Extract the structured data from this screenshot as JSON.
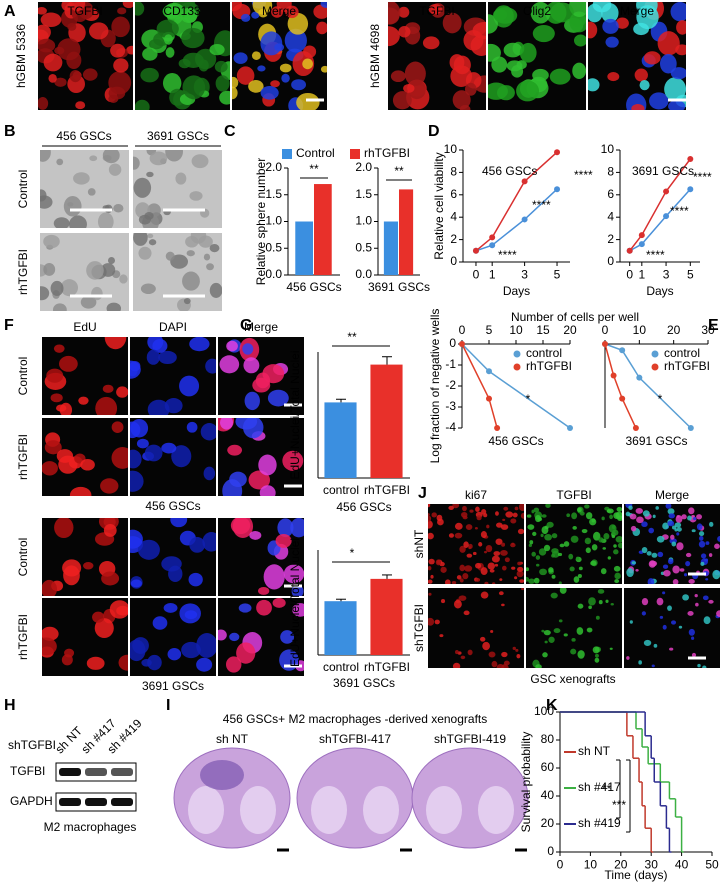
{
  "panel_labels": [
    "A",
    "B",
    "C",
    "D",
    "E",
    "F",
    "G",
    "H",
    "I",
    "J",
    "K"
  ],
  "a": {
    "left_sample": "hGBM 5336",
    "left_headers": [
      "TGFBI",
      "CD133",
      "Merge"
    ],
    "right_sample": "hGBM 4698",
    "right_headers": [
      "TGFBI",
      "Olig2",
      "Merge"
    ]
  },
  "b": {
    "columns": [
      "456 GSCs",
      "3691 GSCs"
    ],
    "rows": [
      "Control",
      "rhTGFBI"
    ]
  },
  "e_header": "Number of cells per well",
  "f": {
    "headers": [
      "EdU",
      "DAPI",
      "Merge"
    ],
    "rows": [
      "Control",
      "rhTGFBI"
    ],
    "groups": [
      "456 GSCs",
      "3691 GSCs"
    ]
  },
  "j": {
    "headers": [
      "ki67",
      "TGFBI",
      "Merge"
    ],
    "rows": [
      "shNT",
      "shTGFBI"
    ],
    "caption": "GSC xenografts"
  },
  "h": {
    "group": "shTGFBI",
    "columns": [
      "sh NT",
      "sh #417",
      "sh #419"
    ],
    "bands": [
      "TGFBI",
      "GAPDH"
    ],
    "caption": "M2 macrophages"
  },
  "i": {
    "title": "456 GSCs+ M2 macrophages -derived xenografts",
    "columns": [
      "sh NT",
      "shTGFBI-417",
      "shTGFBI-419"
    ]
  },
  "chart_data": [
    {
      "type": "bar",
      "ylabel": "Relative sphere number",
      "categories": [
        "456 GSCs"
      ],
      "series": [
        {
          "name": "Control",
          "color": "#3b8fe0",
          "values": [
            1.0
          ]
        },
        {
          "name": "rhTGFBI",
          "color": "#e8302a",
          "values": [
            1.7
          ]
        }
      ],
      "ylim": [
        0,
        2
      ],
      "yticks": [
        {
          "value": 0,
          "label": "0.0"
        },
        {
          "value": 0.5,
          "label": "0.5"
        },
        {
          "value": 1,
          "label": "1.0"
        },
        {
          "value": 1.5,
          "label": "1.5"
        },
        {
          "value": 2,
          "label": "2.0"
        }
      ],
      "legend": "top",
      "annotations": [
        "**"
      ]
    },
    {
      "type": "bar",
      "categories": [
        "3691 GSCs"
      ],
      "series": [
        {
          "color": "#3b8fe0",
          "values": [
            1.0
          ]
        },
        {
          "color": "#e8302a",
          "values": [
            1.6
          ]
        }
      ],
      "ylim": [
        0,
        2
      ],
      "yticks": [
        {
          "value": 0,
          "label": "0.0"
        },
        {
          "value": 0.5,
          "label": "0.5"
        },
        {
          "value": 1,
          "label": "1.0"
        },
        {
          "value": 1.5,
          "label": "1.5"
        },
        {
          "value": 2,
          "label": "2.0"
        }
      ],
      "annotations": [
        "**"
      ]
    },
    {
      "type": "line",
      "title": "456 GSCs",
      "xlabel": "Days",
      "ylabel": "Relative cell viability",
      "x": [
        0,
        1,
        3,
        5
      ],
      "series": [
        {
          "color": "#4a90d9",
          "values": [
            1,
            1.5,
            3.8,
            6.5
          ]
        },
        {
          "color": "#d93030",
          "values": [
            1,
            2.2,
            7.2,
            9.8
          ]
        }
      ],
      "xlim": [
        -0.8,
        5.8
      ],
      "xticks": [
        0,
        1,
        3,
        5
      ],
      "ylim": [
        0,
        10
      ],
      "yticks": [
        0,
        2,
        4,
        6,
        8,
        10
      ],
      "markers": true,
      "annotations": [
        "****",
        "****",
        "****"
      ]
    },
    {
      "type": "line",
      "title": "3691 GSCs",
      "xlabel": "Days",
      "x": [
        0,
        1,
        3,
        5
      ],
      "series": [
        {
          "color": "#4a90d9",
          "values": [
            1,
            1.6,
            4.1,
            6.5
          ]
        },
        {
          "color": "#d93030",
          "values": [
            1,
            2.4,
            6.3,
            9.2
          ]
        }
      ],
      "xlim": [
        -0.8,
        5.8
      ],
      "xticks": [
        0,
        1,
        3,
        5
      ],
      "ylim": [
        0,
        10
      ],
      "yticks": [
        0,
        2,
        4,
        6,
        8,
        10
      ],
      "markers": true,
      "annotations": [
        "****",
        "****",
        "****"
      ]
    },
    {
      "type": "line",
      "x_axis_top": true,
      "xlabel": "456 GSCs",
      "ylabel": "Log fraction of negative wells",
      "series": [
        {
          "name": "control",
          "color": "#5a9fd4",
          "x": [
            0,
            5,
            20
          ],
          "values": [
            0,
            -1.3,
            -4
          ]
        },
        {
          "name": "rhTGFBI",
          "color": "#e0402a",
          "x": [
            0,
            5,
            6.5
          ],
          "values": [
            0,
            -2.6,
            -4
          ]
        }
      ],
      "xlim": [
        0,
        20
      ],
      "xticks": [
        0,
        5,
        10,
        15,
        20
      ],
      "ylim": [
        -4,
        0
      ],
      "yticks": [
        0,
        -1,
        -2,
        -3,
        -4
      ],
      "markers": true,
      "legend": "upper-right",
      "annotations": [
        "*"
      ]
    },
    {
      "type": "line",
      "x_axis_top": true,
      "xlabel": "3691 GSCs",
      "series": [
        {
          "name": "control",
          "color": "#5a9fd4",
          "x": [
            0,
            5,
            10,
            25
          ],
          "values": [
            0,
            -0.3,
            -1.6,
            -4
          ]
        },
        {
          "name": "rhTGFBI",
          "color": "#e0402a",
          "x": [
            0,
            2.5,
            5,
            9
          ],
          "values": [
            0,
            -1.5,
            -2.6,
            -4
          ]
        }
      ],
      "xlim": [
        0,
        30
      ],
      "xticks": [
        0,
        10,
        20,
        30
      ],
      "ylim": [
        -4,
        0
      ],
      "markers": true,
      "legend": "upper-right",
      "annotations": [
        "*"
      ]
    },
    {
      "type": "bar",
      "ylabel": "EdU+Nuclei/Total Nuclei",
      "xlabel": "456 GSCs",
      "categories": [
        "control",
        "rhTGFBI"
      ],
      "series": [
        {
          "colors": [
            "#3b8fe0",
            "#e8302a"
          ],
          "values": [
            0.48,
            0.72
          ],
          "errors": [
            0.02,
            0.05
          ]
        }
      ],
      "ylim": [
        0,
        0.8
      ],
      "annotations": [
        "**"
      ]
    },
    {
      "type": "bar",
      "ylabel": "EdU+Nuclei/Total Nuclei",
      "xlabel": "3691 GSCs",
      "categories": [
        "control",
        "rhTGFBI"
      ],
      "series": [
        {
          "colors": [
            "#3b8fe0",
            "#e8302a"
          ],
          "values": [
            0.41,
            0.58
          ],
          "errors": [
            0.015,
            0.03
          ]
        }
      ],
      "ylim": [
        0,
        0.8
      ],
      "annotations": [
        "*"
      ]
    },
    {
      "type": "line",
      "step": true,
      "xlabel": "Time (days)",
      "ylabel": "Survival probability",
      "series": [
        {
          "name": "sh NT",
          "color": "#c0392b",
          "x": [
            0,
            22,
            24,
            26,
            27,
            28,
            30
          ],
          "values": [
            100,
            83,
            67,
            50,
            33,
            17,
            0
          ]
        },
        {
          "name": "sh #417",
          "color": "#3cb043",
          "x": [
            0,
            25,
            27,
            29,
            33,
            36,
            38,
            40
          ],
          "values": [
            100,
            88,
            75,
            63,
            50,
            38,
            25,
            0
          ]
        },
        {
          "name": "sh #419",
          "color": "#2b2b8f",
          "x": [
            0,
            28,
            30,
            31,
            33,
            35,
            36
          ],
          "values": [
            100,
            83,
            67,
            50,
            33,
            17,
            0
          ]
        }
      ],
      "xlim": [
        0,
        50
      ],
      "xticks": [
        0,
        10,
        20,
        30,
        40,
        50
      ],
      "ylim": [
        0,
        100
      ],
      "yticks": [
        0,
        20,
        40,
        60,
        80,
        100
      ],
      "legend": "center-left",
      "annotations": [
        "**",
        "***"
      ]
    }
  ]
}
